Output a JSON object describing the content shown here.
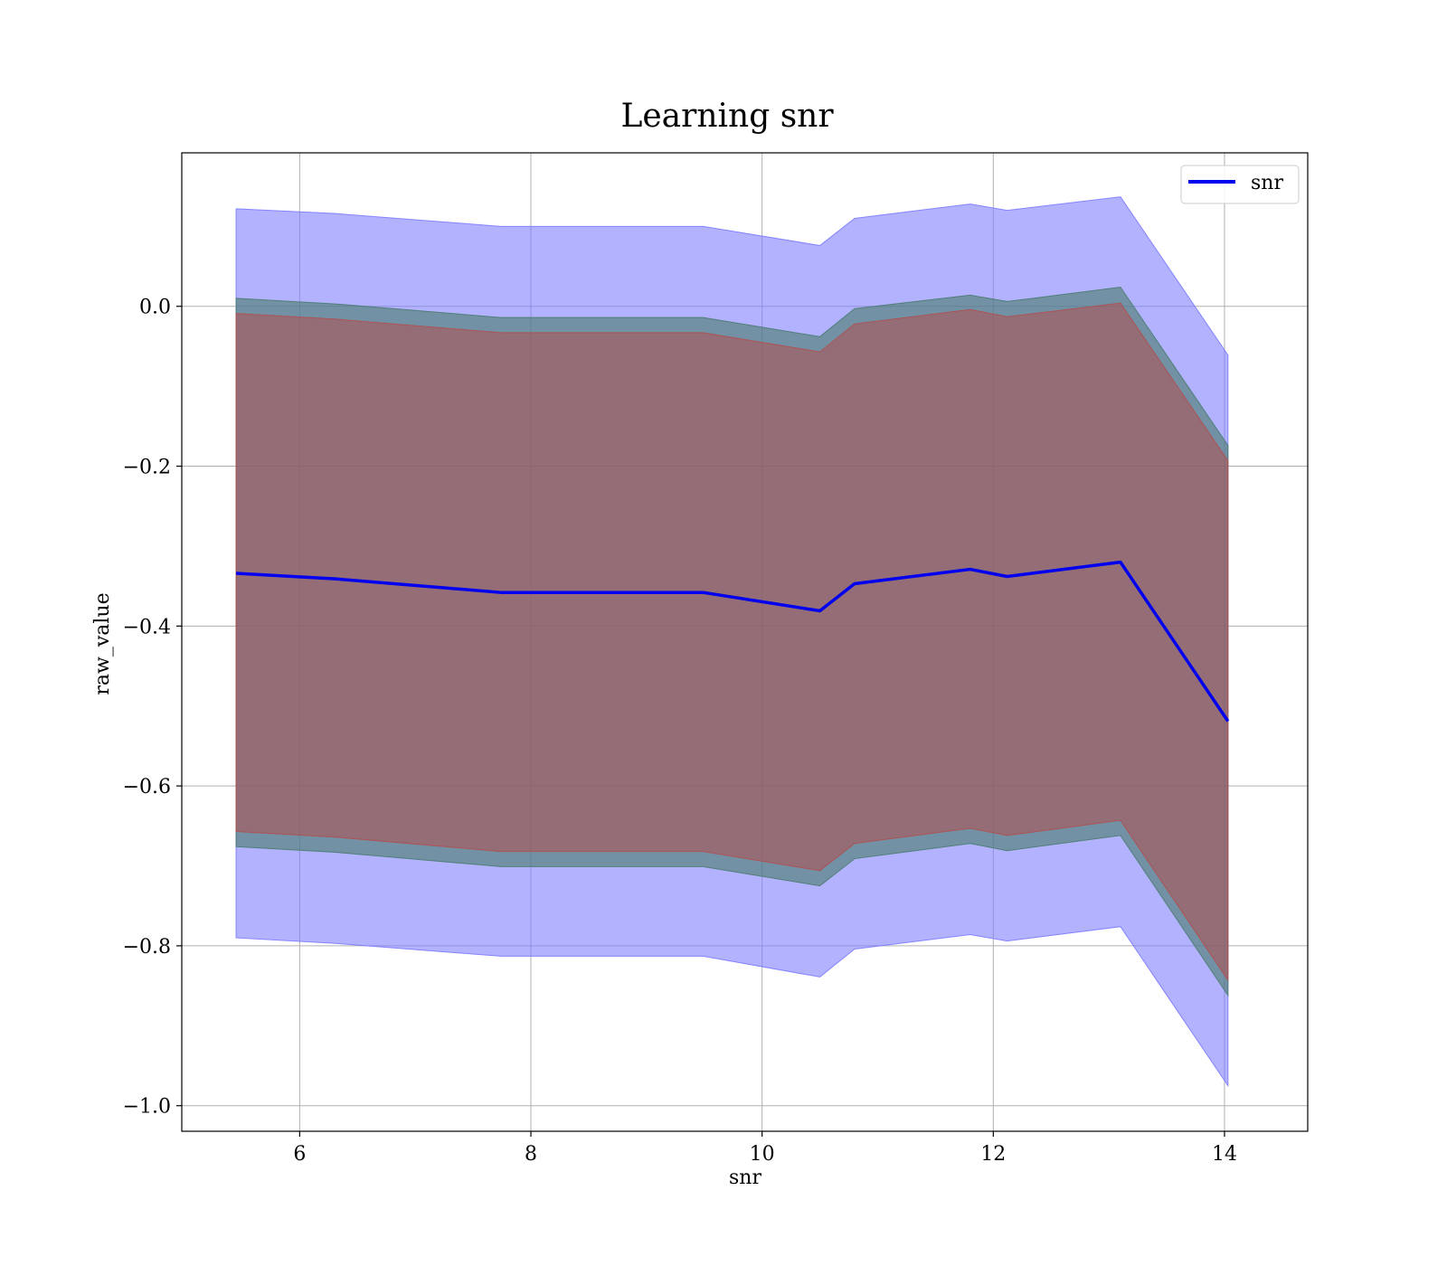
{
  "chart_data": {
    "type": "area",
    "title": "Learning snr",
    "xlabel": "snr",
    "ylabel": "raw_value",
    "xlim": [
      4.98,
      14.72
    ],
    "ylim": [
      -1.032,
      0.192
    ],
    "xticks": [
      6,
      8,
      10,
      12,
      14
    ],
    "yticks": [
      0.0,
      -0.2,
      -0.4,
      -0.6,
      -0.8,
      -1.0
    ],
    "xtick_labels": [
      "6",
      "8",
      "10",
      "12",
      "14"
    ],
    "ytick_labels": [
      "0.0",
      "−0.2",
      "−0.4",
      "−0.6",
      "−0.8",
      "−1.0"
    ],
    "grid": true,
    "legend_position": "top-right",
    "x": [
      5.45,
      6.31,
      7.74,
      9.49,
      10.5,
      10.8,
      11.8,
      12.12,
      13.1,
      14.03
    ],
    "series": [
      {
        "name": "snr",
        "color": "#0000ee",
        "values": [
          -0.334,
          -0.341,
          -0.358,
          -0.358,
          -0.381,
          -0.347,
          -0.329,
          -0.338,
          -0.32,
          -0.519
        ]
      }
    ],
    "bands": [
      {
        "color": "#7b7bff",
        "opacity": 0.58,
        "upper": [
          0.122,
          0.116,
          0.1,
          0.1,
          0.076,
          0.11,
          0.128,
          0.12,
          0.137,
          -0.061
        ],
        "lower": [
          -0.79,
          -0.797,
          -0.813,
          -0.813,
          -0.839,
          -0.804,
          -0.786,
          -0.794,
          -0.776,
          -0.975
        ]
      },
      {
        "color": "#4a7c6e",
        "opacity": 0.62,
        "upper": [
          0.01,
          0.003,
          -0.014,
          -0.014,
          -0.038,
          -0.003,
          0.014,
          0.006,
          0.024,
          -0.174
        ],
        "lower": [
          -0.676,
          -0.683,
          -0.701,
          -0.701,
          -0.725,
          -0.691,
          -0.672,
          -0.681,
          -0.662,
          -0.862
        ]
      },
      {
        "color": "#b05050",
        "opacity": 0.55,
        "upper": [
          -0.009,
          -0.016,
          -0.033,
          -0.033,
          -0.057,
          -0.022,
          -0.004,
          -0.013,
          0.004,
          -0.193
        ],
        "lower": [
          -0.657,
          -0.664,
          -0.682,
          -0.682,
          -0.706,
          -0.672,
          -0.653,
          -0.662,
          -0.643,
          -0.843
        ]
      }
    ]
  }
}
